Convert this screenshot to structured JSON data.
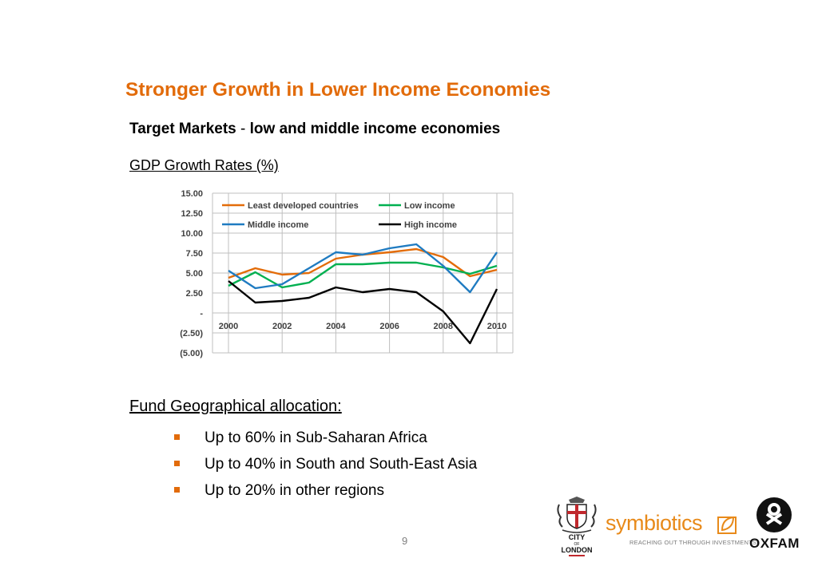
{
  "title": "Stronger Growth in Lower Income Economies",
  "subtitle": {
    "part1": "Target Markets",
    "sep": " - ",
    "part2": "low and middle income economies"
  },
  "gdp_label": "GDP Growth Rates (%)",
  "allocation": {
    "heading": "Fund Geographical allocation:",
    "items": [
      "Up to 60% in Sub-Saharan Africa",
      "Up to 40% in South and South-East Asia",
      "Up to 20% in other regions"
    ]
  },
  "page_number": "9",
  "logos": {
    "city_of_london": {
      "line1": "CITY",
      "line2": "OF",
      "line3": "LONDON"
    },
    "symbiotics": {
      "name": "symbiotics",
      "tagline": "REACHING OUT THROUGH INVESTMENTS"
    },
    "oxfam": {
      "name": "OXFAM"
    }
  },
  "colors": {
    "title": "#e26b0a",
    "least_developed": "#e36c09",
    "low_income": "#00b050",
    "middle_income": "#1f7bc1",
    "high_income": "#000000"
  },
  "chart_data": {
    "type": "line",
    "x": [
      2000,
      2001,
      2002,
      2003,
      2004,
      2005,
      2006,
      2007,
      2008,
      2009,
      2010
    ],
    "xticks": [
      "2000",
      "2002",
      "2004",
      "2006",
      "2008",
      "2010"
    ],
    "yticks": [
      "15.00",
      "12.50",
      "10.00",
      "7.50",
      "5.00",
      "2.50",
      "-",
      "(2.50)",
      "(5.00)"
    ],
    "ylim": [
      -5,
      15
    ],
    "grid": true,
    "legend_position": "top",
    "series": [
      {
        "name": "Least developed countries",
        "color": "#e36c09",
        "values": [
          4.4,
          5.6,
          4.8,
          5.0,
          6.8,
          7.3,
          7.6,
          8.0,
          7.0,
          4.6,
          5.4
        ]
      },
      {
        "name": "Low income",
        "color": "#00b050",
        "values": [
          3.4,
          5.1,
          3.2,
          3.8,
          6.1,
          6.1,
          6.3,
          6.3,
          5.7,
          4.9,
          5.9
        ]
      },
      {
        "name": "Middle income",
        "color": "#1f7bc1",
        "values": [
          5.3,
          3.1,
          3.6,
          5.6,
          7.6,
          7.3,
          8.1,
          8.6,
          5.9,
          2.6,
          7.6
        ]
      },
      {
        "name": "High income",
        "color": "#000000",
        "values": [
          4.0,
          1.3,
          1.5,
          1.9,
          3.2,
          2.6,
          3.0,
          2.6,
          0.2,
          -3.8,
          3.0
        ]
      }
    ]
  }
}
